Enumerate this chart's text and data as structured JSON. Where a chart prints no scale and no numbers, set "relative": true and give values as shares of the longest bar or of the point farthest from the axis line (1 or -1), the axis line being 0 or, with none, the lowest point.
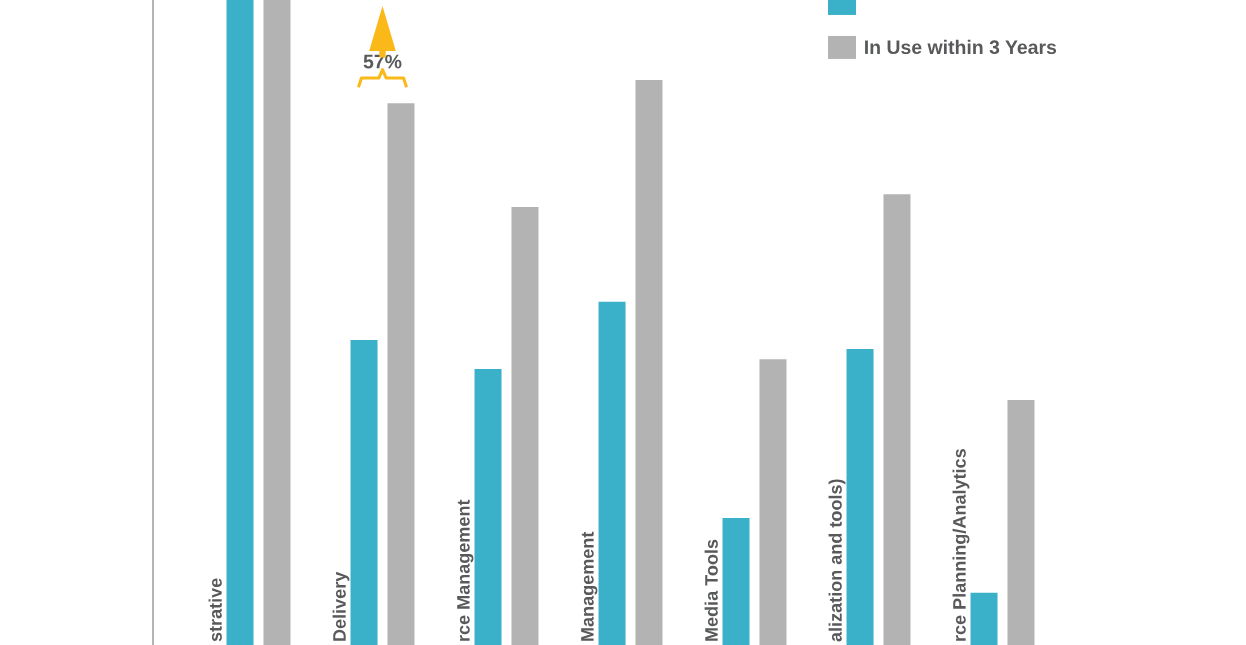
{
  "chart_data": {
    "type": "bar",
    "relative": true,
    "categories": [
      "strative",
      "Delivery",
      "rce Management",
      "Management",
      "Media Tools",
      "alization and tools)",
      "rce Planning/Analytics"
    ],
    "series": [
      {
        "color": "#3ab0c9",
        "values": [
          1.0,
          0.473,
          0.428,
          0.532,
          0.197,
          0.459,
          0.081
        ]
      },
      {
        "name": "In Use within 3 Years",
        "color": "#b3b3b3",
        "values": [
          1.0,
          0.84,
          0.679,
          0.876,
          0.443,
          0.699,
          0.38
        ]
      }
    ],
    "legend": "top right",
    "annotations": [
      "57%"
    ]
  }
}
